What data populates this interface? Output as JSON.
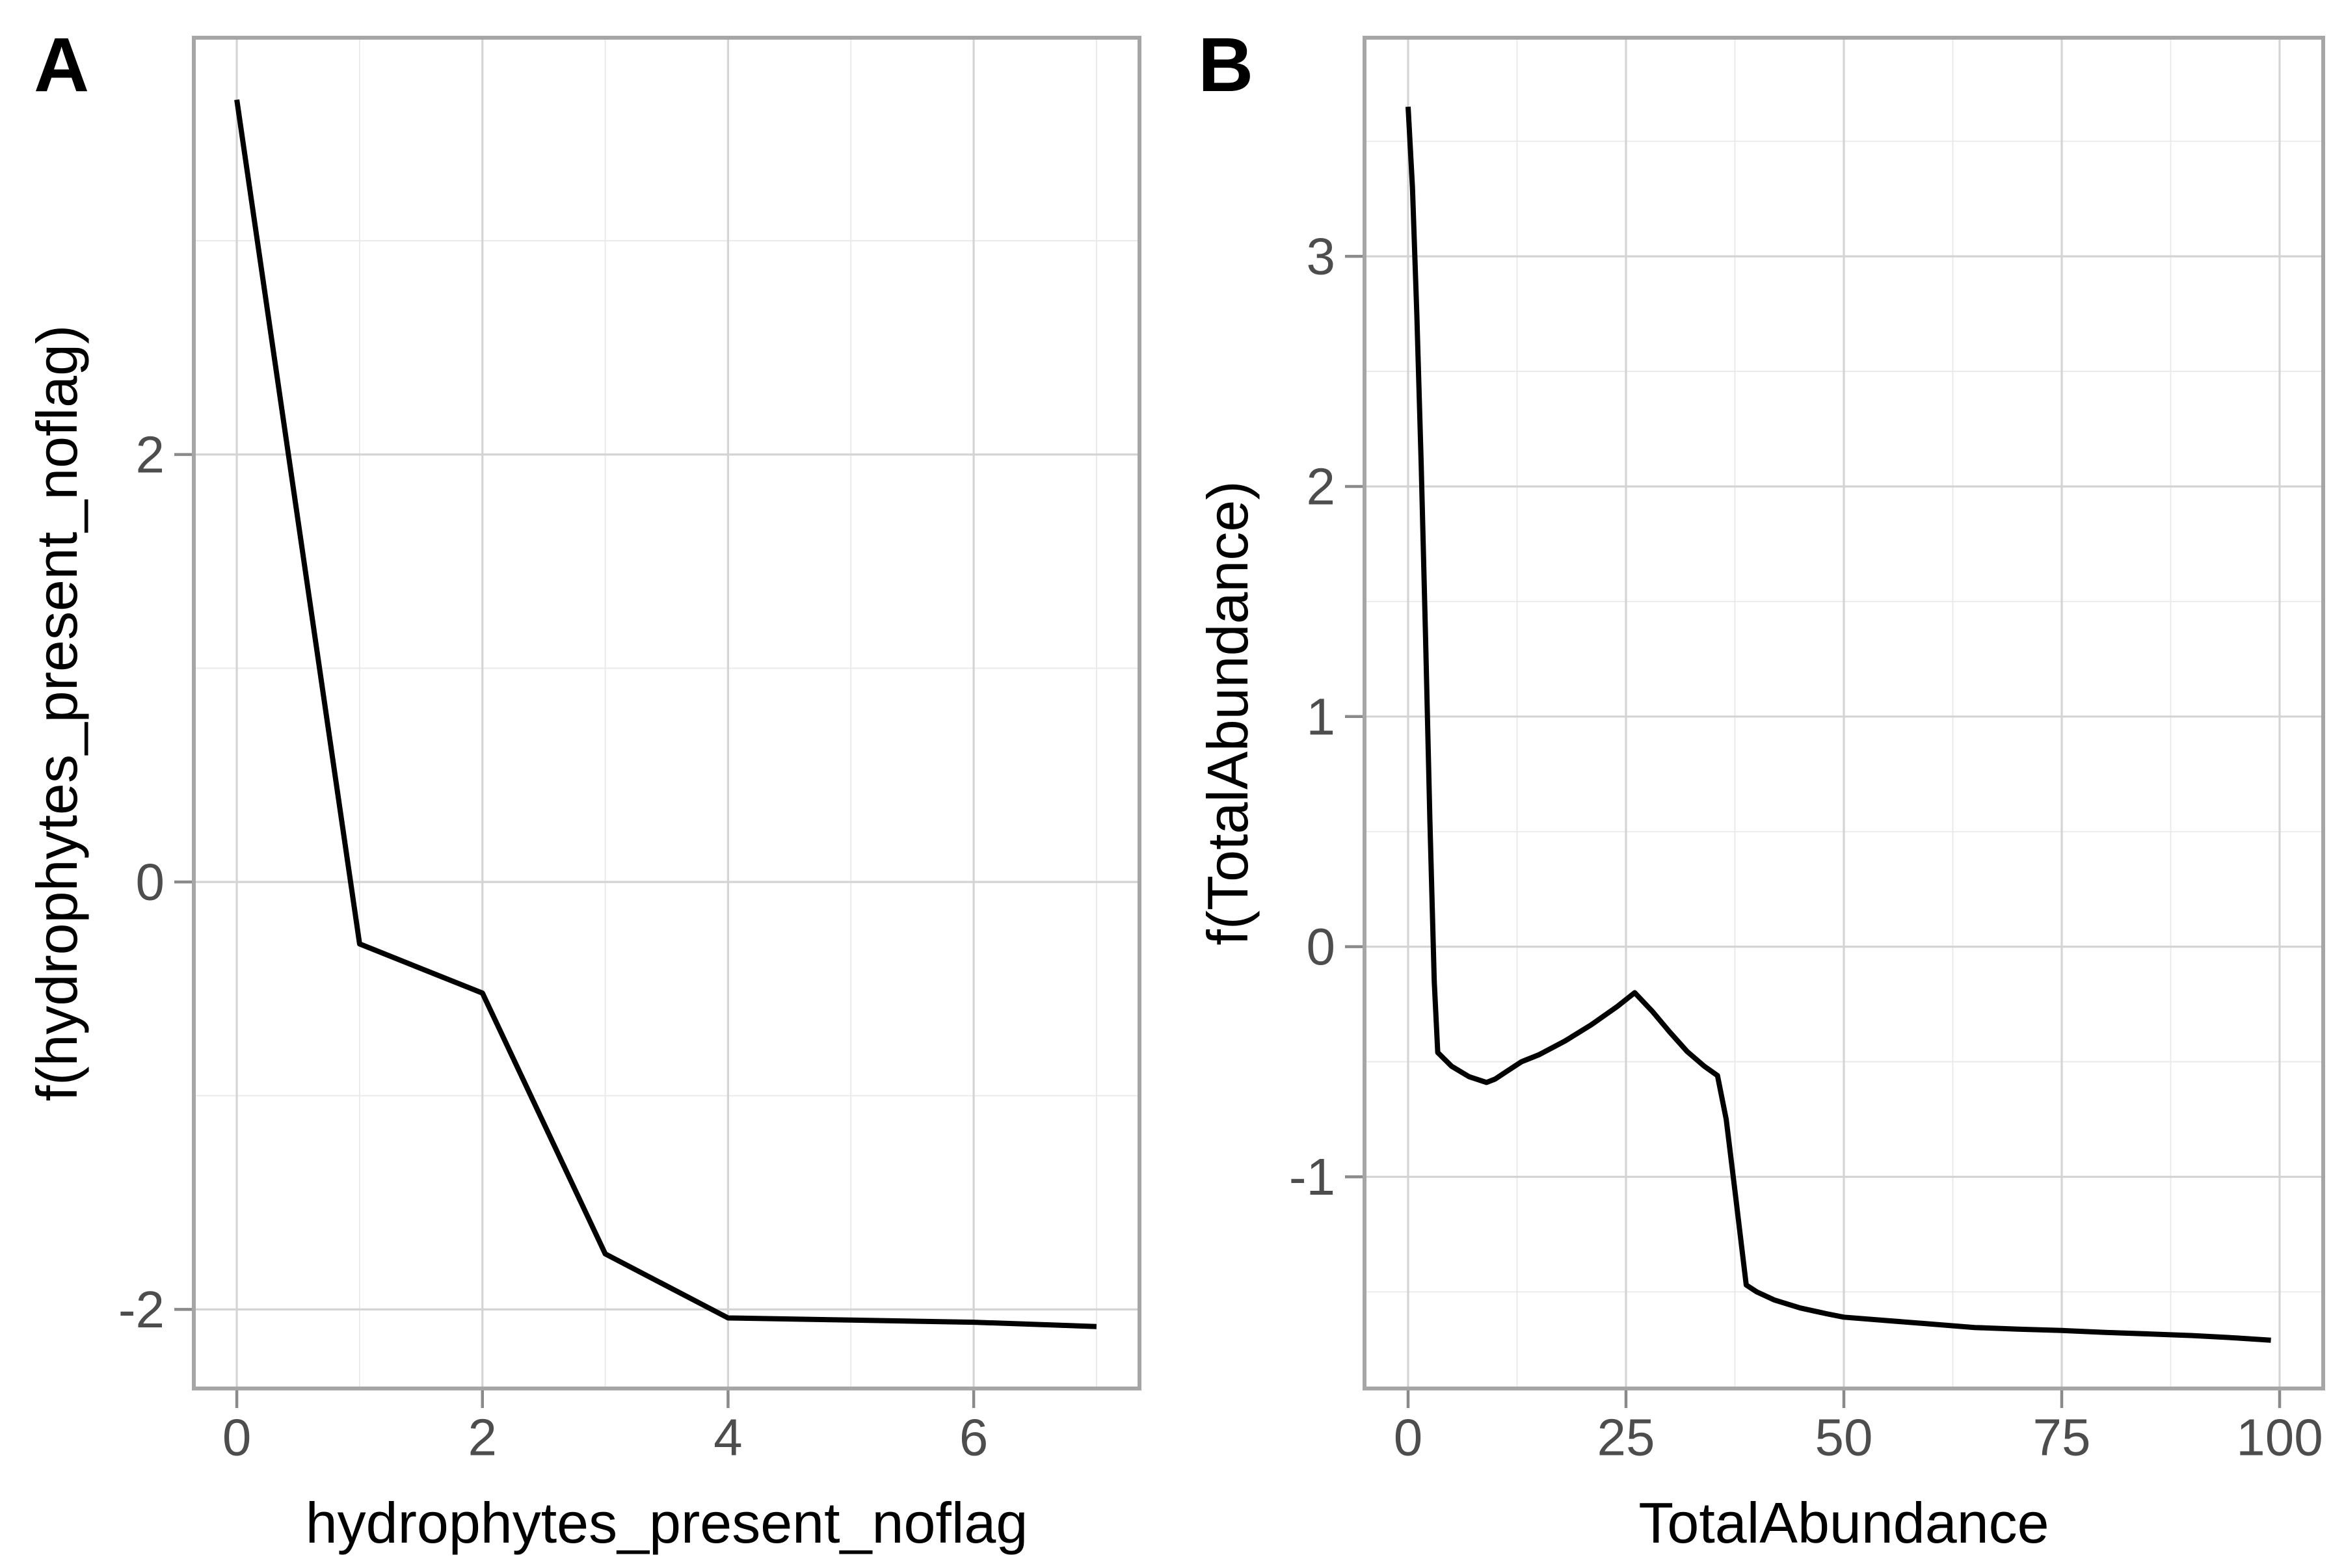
{
  "figure": {
    "background": "#ffffff",
    "description": "Two-panel GAM smooth partial effect line plots",
    "colors": {
      "line": "#000000",
      "grid_major": "#d4d4d4",
      "grid_minor": "#e9e9e9",
      "panel_border": "#a6a6a6",
      "tick_mark": "#8a8a8a",
      "tick_text": "#4d4d4d",
      "axis_title": "#000000",
      "tag_text": "#000000"
    }
  },
  "chart_data": [
    {
      "type": "line",
      "tag": "A",
      "title": "",
      "xlabel": "hydrophytes_present_noflag",
      "ylabel": "f(hydrophytes_present_noflag)",
      "legend": "none",
      "grid": true,
      "xlim": [
        -0.35,
        7.35
      ],
      "ylim": [
        -2.37,
        3.95
      ],
      "x_ticks": [
        0,
        2,
        4,
        6
      ],
      "x_minor": [
        1,
        3,
        5,
        7
      ],
      "y_ticks": [
        -2,
        0,
        2
      ],
      "y_minor": [
        -1,
        1,
        3
      ],
      "points": [
        [
          0,
          3.66
        ],
        [
          1,
          -0.29
        ],
        [
          2,
          -0.52
        ],
        [
          3,
          -1.74
        ],
        [
          4,
          -2.04
        ],
        [
          5,
          -2.05
        ],
        [
          6,
          -2.06
        ],
        [
          7,
          -2.08
        ]
      ]
    },
    {
      "type": "line",
      "tag": "B",
      "title": "",
      "xlabel": "TotalAbundance",
      "ylabel": "f(TotalAbundance)",
      "legend": "none",
      "grid": true,
      "xlim": [
        -5,
        105
      ],
      "ylim": [
        -1.92,
        3.95
      ],
      "x_ticks": [
        0,
        25,
        50,
        75,
        100
      ],
      "x_minor": [
        12.5,
        37.5,
        62.5,
        87.5
      ],
      "y_ticks": [
        -1,
        0,
        1,
        2,
        3
      ],
      "y_minor": [
        -1.5,
        -0.5,
        0.5,
        1.5,
        2.5,
        3.5
      ],
      "points": [
        [
          0,
          3.65
        ],
        [
          0.5,
          3.3
        ],
        [
          1,
          2.75
        ],
        [
          1.5,
          2.1
        ],
        [
          2,
          1.35
        ],
        [
          2.5,
          0.55
        ],
        [
          3,
          -0.15
        ],
        [
          3.4,
          -0.46
        ],
        [
          5,
          -0.52
        ],
        [
          7,
          -0.565
        ],
        [
          9,
          -0.59
        ],
        [
          10,
          -0.575
        ],
        [
          11,
          -0.55
        ],
        [
          13,
          -0.5
        ],
        [
          15,
          -0.47
        ],
        [
          18,
          -0.41
        ],
        [
          21,
          -0.34
        ],
        [
          24,
          -0.26
        ],
        [
          26,
          -0.2
        ],
        [
          28,
          -0.28
        ],
        [
          30,
          -0.37
        ],
        [
          32,
          -0.455
        ],
        [
          34,
          -0.52
        ],
        [
          35.5,
          -0.56
        ],
        [
          36.5,
          -0.75
        ],
        [
          37.5,
          -1.06
        ],
        [
          38.8,
          -1.47
        ],
        [
          40,
          -1.5
        ],
        [
          42,
          -1.535
        ],
        [
          45,
          -1.57
        ],
        [
          48,
          -1.595
        ],
        [
          50,
          -1.61
        ],
        [
          55,
          -1.625
        ],
        [
          60,
          -1.64
        ],
        [
          65,
          -1.655
        ],
        [
          70,
          -1.662
        ],
        [
          75,
          -1.668
        ],
        [
          80,
          -1.676
        ],
        [
          85,
          -1.683
        ],
        [
          90,
          -1.69
        ],
        [
          95,
          -1.7
        ],
        [
          99,
          -1.71
        ]
      ]
    }
  ]
}
